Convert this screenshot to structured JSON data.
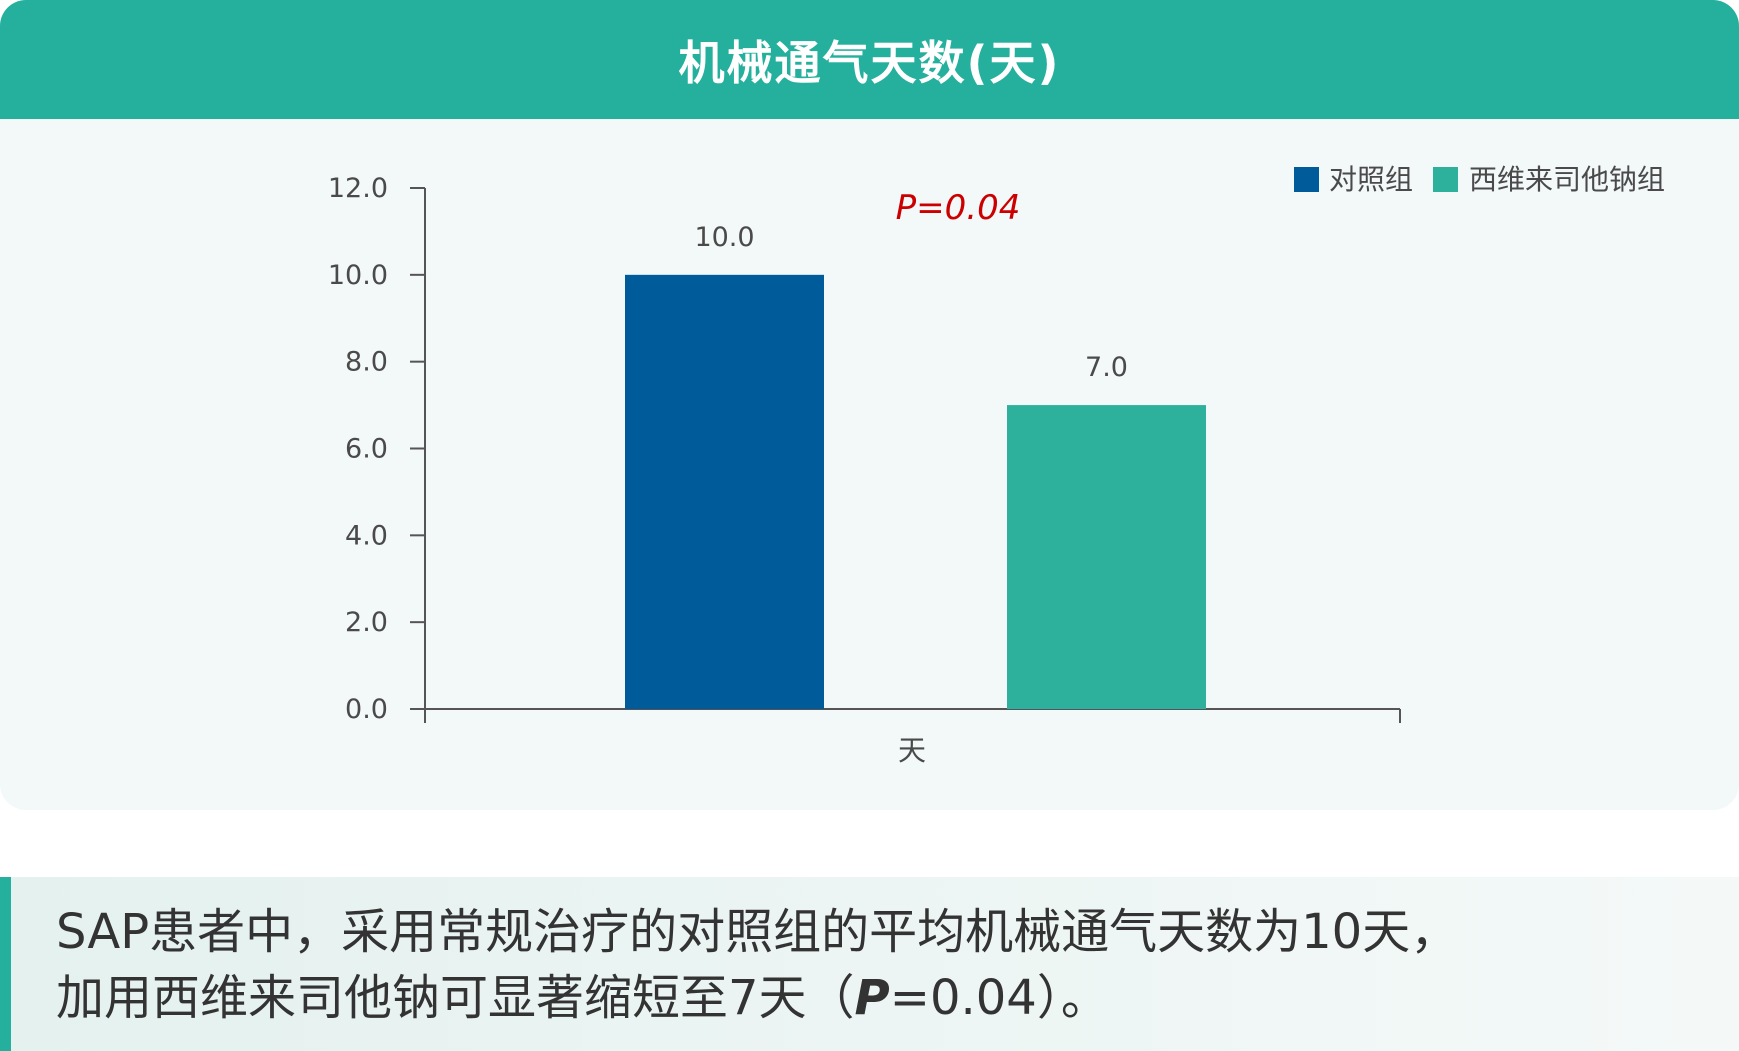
{
  "header": {
    "title": "机械通气天数(天)"
  },
  "colors": {
    "header": "#25b09e",
    "control": "#005b9b",
    "treatment": "#2db09c",
    "pvalue": "#cc0000"
  },
  "chart_data": {
    "type": "bar",
    "title": "机械通气天数(天)",
    "categories": [
      "天"
    ],
    "series": [
      {
        "name": "对照组",
        "values": [
          10.0
        ],
        "label": "10.0",
        "color": "#005b9b"
      },
      {
        "name": "西维来司他钠组",
        "values": [
          7.0
        ],
        "label": "7.0",
        "color": "#2db09c"
      }
    ],
    "ylim": [
      0,
      12
    ],
    "yticks": [
      "0.0",
      "2.0",
      "4.0",
      "6.0",
      "8.0",
      "10.0",
      "12.0"
    ],
    "annotation": "P=0.04",
    "legend_position": "top-right",
    "grid": false
  },
  "summary": {
    "line1": "SAP患者中，采用常规治疗的对照组的平均机械通气天数为10天，",
    "line2_prefix": "加用西维来司他钠可显著缩短至7天（",
    "p_letter": "P",
    "line2_suffix": "=0.04）。"
  }
}
